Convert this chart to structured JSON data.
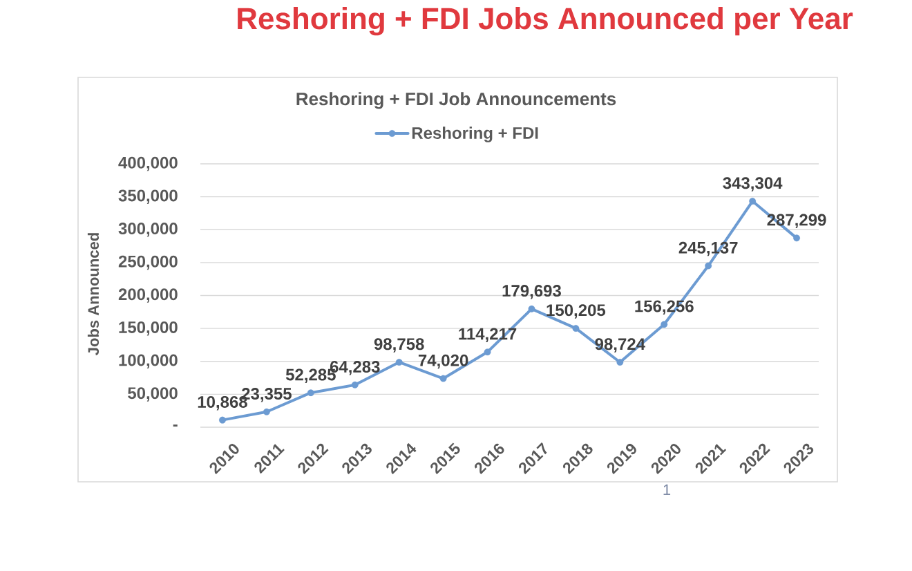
{
  "chart_data": {
    "type": "line",
    "title": "Reshoring + FDI Jobs Announced per Year",
    "subtitle": "Reshoring + FDI Job Announcements",
    "ylabel": "Jobs Announced",
    "categories": [
      "2010",
      "2011",
      "2012",
      "2013",
      "2014",
      "2015",
      "2016",
      "2017",
      "2018",
      "2019",
      "2020",
      "2021",
      "2022",
      "2023"
    ],
    "series": [
      {
        "name": "Reshoring + FDI",
        "color": "#6c9bd2",
        "values": [
          10868,
          23355,
          52285,
          64283,
          98758,
          74020,
          114217,
          179693,
          150205,
          98724,
          156256,
          245137,
          343304,
          287299
        ],
        "value_labels": [
          "10,868",
          "23,355",
          "52,285",
          "64,283",
          "98,758",
          "74,020",
          "114,217",
          "179,693",
          "150,205",
          "98,724",
          "156,256",
          "245,137",
          "343,304",
          "287,299"
        ]
      }
    ],
    "ylim": [
      0,
      400000
    ],
    "yticks": [
      {
        "value": 0,
        "label": "-"
      },
      {
        "value": 50000,
        "label": "50,000"
      },
      {
        "value": 100000,
        "label": "100,000"
      },
      {
        "value": 150000,
        "label": "150,000"
      },
      {
        "value": 200000,
        "label": "200,000"
      },
      {
        "value": 250000,
        "label": "250,000"
      },
      {
        "value": 300000,
        "label": "300,000"
      },
      {
        "value": 350000,
        "label": "350,000"
      },
      {
        "value": 400000,
        "label": "400,000"
      }
    ],
    "grid": "y",
    "legend": "top",
    "marker": "circle",
    "line_style": "solid",
    "annotations": [
      "1"
    ]
  }
}
